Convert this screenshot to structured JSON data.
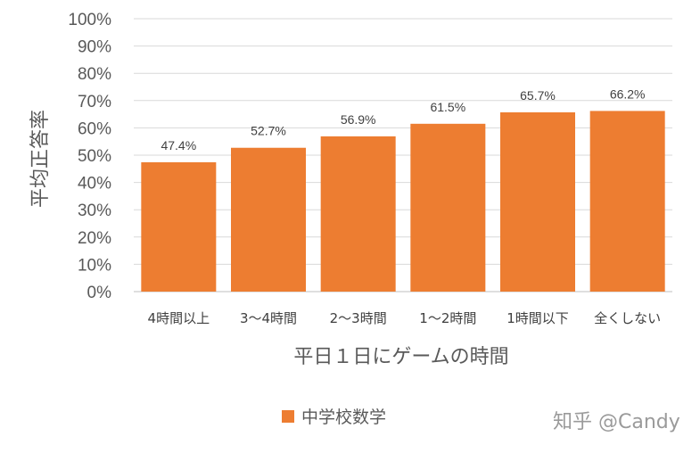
{
  "chart_data": {
    "type": "bar",
    "categories": [
      "4時間以上",
      "3～4時間",
      "2～3時間",
      "1～2時間",
      "1時間以下",
      "全くしない"
    ],
    "series": [
      {
        "name": "中学校数学",
        "values": [
          47.4,
          52.7,
          56.9,
          61.5,
          65.7,
          66.2
        ],
        "color": "#ED7D31"
      }
    ],
    "data_labels": [
      "47.4%",
      "52.7%",
      "56.9%",
      "61.5%",
      "65.7%",
      "66.2%"
    ],
    "y_ticks": [
      "0%",
      "10%",
      "20%",
      "30%",
      "40%",
      "50%",
      "60%",
      "70%",
      "80%",
      "90%",
      "100%"
    ],
    "ylim": [
      0,
      100
    ],
    "xlabel": "平日１日にゲームの時間",
    "ylabel": "平均正答率",
    "grid": true,
    "legend_position": "bottom"
  },
  "watermark": "知乎 @Candy",
  "colors": {
    "bar": "#ED7D31",
    "grid": "#D9D9D9",
    "text": "#595959"
  }
}
